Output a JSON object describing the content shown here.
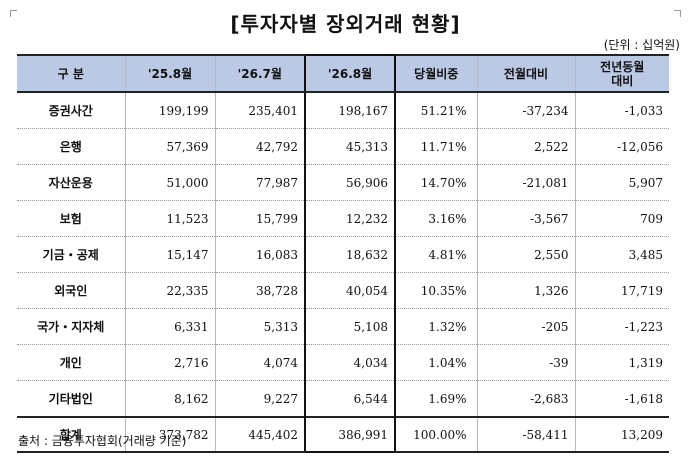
{
  "title": "[투자자별 장외거래 현황]",
  "unit": "(단위 : 십억원)",
  "headers": [
    "구  분",
    "'25.8월",
    "'26.7월",
    "'26.8월",
    "당월비중",
    "전월대비",
    "전년동월\n대비"
  ],
  "rows": [
    {
      "label": "증권사간",
      "values": [
        "199,199",
        "235,401",
        "198,167",
        "51.21%",
        "-37,234",
        "-1,033"
      ]
    },
    {
      "label": "은행",
      "values": [
        "57,369",
        "42,792",
        "45,313",
        "11.71%",
        "2,522",
        "-12,056"
      ]
    },
    {
      "label": "자산운용",
      "values": [
        "51,000",
        "77,987",
        "56,906",
        "14.70%",
        "-21,081",
        "5,907"
      ]
    },
    {
      "label": "보험",
      "values": [
        "11,523",
        "15,799",
        "12,232",
        "3.16%",
        "-3,567",
        "709"
      ]
    },
    {
      "label": "기금・공제",
      "values": [
        "15,147",
        "16,083",
        "18,632",
        "4.81%",
        "2,550",
        "3,485"
      ]
    },
    {
      "label": "외국인",
      "values": [
        "22,335",
        "38,728",
        "40,054",
        "10.35%",
        "1,326",
        "17,719"
      ]
    },
    {
      "label": "국가・지자체",
      "values": [
        "6,331",
        "5,313",
        "5,108",
        "1.32%",
        "-205",
        "-1,223"
      ]
    },
    {
      "label": "개인",
      "values": [
        "2,716",
        "4,074",
        "4,034",
        "1.04%",
        "-39",
        "1,319"
      ]
    },
    {
      "label": "기타법인",
      "values": [
        "8,162",
        "9,227",
        "6,544",
        "1.69%",
        "-2,683",
        "-1,618"
      ]
    },
    {
      "label": "합계",
      "values": [
        "373,782",
        "445,402",
        "386,991",
        "100.00%",
        "-58,411",
        "13,209"
      ]
    }
  ],
  "source": "출처 : 금융투자협회(거래량 기준)",
  "colors": {
    "header_bg": "#bcc9e4"
  }
}
